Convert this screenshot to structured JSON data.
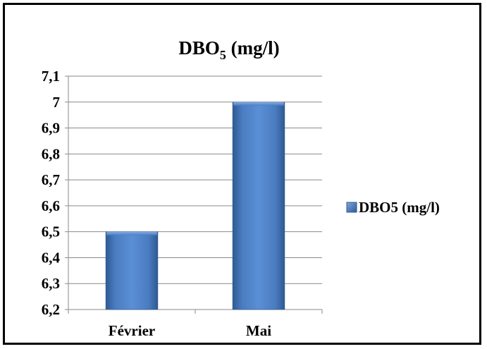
{
  "chart_data": {
    "type": "bar",
    "title": "DBO",
    "title_subscript": "5",
    "title_suffix": " (mg/l)",
    "categories": [
      "Février",
      "Mai"
    ],
    "series": [
      {
        "name": "DBO5 (mg/l)",
        "values": [
          6.5,
          7.0
        ]
      }
    ],
    "ylim": [
      6.2,
      7.1
    ],
    "yticks": [
      "6,2",
      "6,3",
      "6,4",
      "6,5",
      "6,6",
      "6,7",
      "6,8",
      "6,9",
      "7",
      "7,1"
    ],
    "ytick_values": [
      6.2,
      6.3,
      6.4,
      6.5,
      6.6,
      6.7,
      6.8,
      6.9,
      7.0,
      7.1
    ],
    "grid": true,
    "legend_position": "right",
    "bar_color": "#4f81bd"
  }
}
